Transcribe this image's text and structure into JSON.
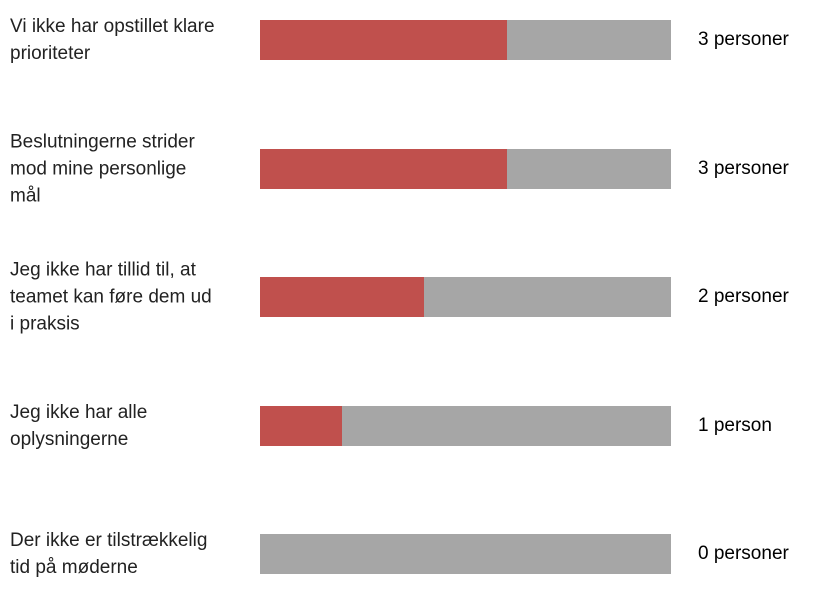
{
  "chart_data": {
    "type": "bar",
    "orientation": "horizontal",
    "categories": [
      "Vi ikke har opstillet klare prioriteter",
      "Beslutningerne strider mod mine personlige mål",
      "Jeg ikke har tillid til, at teamet kan føre dem ud i praksis",
      "Jeg ikke har alle oplysningerne",
      "Der ikke er tilstrækkelig tid på møderne"
    ],
    "values": [
      3,
      3,
      2,
      1,
      0
    ],
    "value_labels": [
      "3 personer",
      "3 personer",
      "2 personer",
      "1 person",
      "0 personer"
    ],
    "color": "#c0504d",
    "track_color": "#a6a6a6",
    "xlim": [
      0,
      5
    ]
  }
}
